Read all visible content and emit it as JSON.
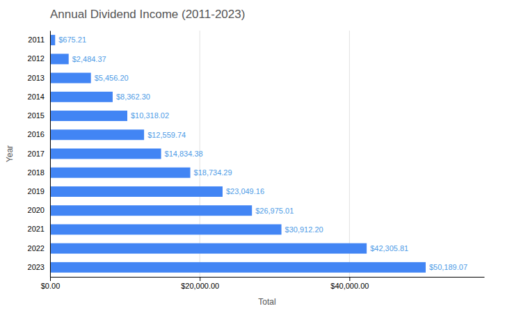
{
  "chart_data": {
    "type": "bar",
    "orientation": "horizontal",
    "title": "Annual Dividend Income (2011-2023)",
    "xlabel": "Total",
    "ylabel": "Year",
    "categories": [
      "2011",
      "2012",
      "2013",
      "2014",
      "2015",
      "2016",
      "2017",
      "2018",
      "2019",
      "2020",
      "2021",
      "2022",
      "2023"
    ],
    "values": [
      675.21,
      2484.37,
      5456.2,
      8362.3,
      10318.02,
      12559.74,
      14834.38,
      18734.29,
      23049.16,
      26975.01,
      30912.2,
      42305.81,
      50189.07
    ],
    "value_labels": [
      "$675.21",
      "$2,484.37",
      "$5,456.20",
      "$8,362.30",
      "$10,318.02",
      "$12,559.74",
      "$14,834.38",
      "$18,734.29",
      "$23,049.16",
      "$26,975.01",
      "$30,912.20",
      "$42,305.81",
      "$50,189.07"
    ],
    "data_labels": true,
    "color": "#4285F4",
    "xlim": [
      0,
      58000
    ],
    "xticks": [
      {
        "value": 0,
        "label": "$0.00"
      },
      {
        "value": 20000,
        "label": "$20,000.00"
      },
      {
        "value": 40000,
        "label": "$40,000.00"
      }
    ],
    "grid": true
  }
}
